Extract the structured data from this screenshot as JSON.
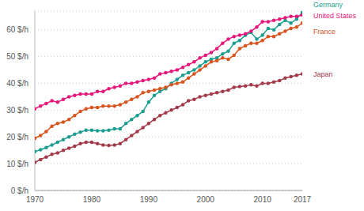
{
  "chart_data": {
    "type": "line",
    "x": [
      1970,
      1971,
      1972,
      1973,
      1974,
      1975,
      1976,
      1977,
      1978,
      1979,
      1980,
      1981,
      1982,
      1983,
      1984,
      1985,
      1986,
      1987,
      1988,
      1989,
      1990,
      1991,
      1992,
      1993,
      1994,
      1995,
      1996,
      1997,
      1998,
      1999,
      2000,
      2001,
      2002,
      2003,
      2004,
      2005,
      2006,
      2007,
      2008,
      2009,
      2010,
      2011,
      2012,
      2013,
      2014,
      2015,
      2016,
      2017
    ],
    "series": [
      {
        "name": "Germany",
        "color": "#1a9e8f",
        "marker": "circle",
        "values": [
          14.5,
          15.2,
          16,
          17,
          18,
          19,
          20,
          21,
          21.8,
          22.5,
          22.5,
          22.3,
          22.3,
          22.5,
          23,
          23,
          25,
          26.5,
          28,
          29.5,
          33,
          35.5,
          37,
          38,
          40,
          41.5,
          43,
          44,
          45,
          46.5,
          48,
          49,
          49.5,
          51,
          52,
          55,
          56,
          58,
          59,
          56.5,
          58,
          60.5,
          60,
          62,
          63.5,
          62.5,
          64,
          66.5
        ]
      },
      {
        "name": "United States",
        "color": "#e6177a",
        "marker": "circle",
        "values": [
          30.5,
          31.5,
          32.5,
          33.5,
          33,
          34,
          35,
          35.5,
          36,
          36,
          36,
          37,
          37,
          38,
          38.5,
          39,
          40,
          40,
          40.5,
          41,
          41.5,
          42,
          43.5,
          44,
          44.5,
          45,
          46,
          47,
          48,
          49.5,
          50.5,
          51.5,
          53,
          55,
          56.5,
          57.5,
          58,
          58.5,
          59.5,
          61,
          63,
          63,
          63.5,
          64,
          64.5,
          65,
          65,
          65.5
        ]
      },
      {
        "name": "France",
        "color": "#d9541e",
        "marker": "circle",
        "values": [
          19.5,
          20.5,
          22,
          24,
          25,
          25.5,
          26.5,
          28,
          29.5,
          30.5,
          31,
          31,
          31.5,
          31.5,
          31.5,
          32,
          33,
          34,
          35,
          36.5,
          37,
          37.5,
          38,
          38.5,
          39.5,
          40,
          40.5,
          42,
          43.5,
          45,
          46.5,
          48,
          48.5,
          49.5,
          49,
          50.5,
          53,
          54,
          55,
          55,
          56,
          57.5,
          57.5,
          58.5,
          59.5,
          60.5,
          61,
          62.5
        ]
      },
      {
        "name": "Japan",
        "color": "#a33a4a",
        "marker": "circle",
        "values": [
          10.5,
          11.5,
          12.5,
          13.5,
          14,
          15,
          15.8,
          16.5,
          17.5,
          18,
          18,
          17.5,
          17,
          16.8,
          17,
          17.5,
          19,
          20.5,
          22,
          23.5,
          25,
          26.5,
          28,
          29,
          30,
          31,
          32,
          33.5,
          34,
          35,
          35.5,
          36,
          36.5,
          37,
          37.5,
          38.5,
          38.8,
          39,
          39.5,
          39,
          40,
          40,
          40.5,
          41,
          42,
          42.5,
          43,
          43.5
        ]
      }
    ],
    "xlim": [
      1970,
      2017
    ],
    "xticks": [
      1970,
      1980,
      1990,
      2000,
      2010,
      2017
    ],
    "ylim": [
      0,
      67
    ],
    "yticks": [
      {
        "value": 0,
        "label": "0 $/h"
      },
      {
        "value": 10,
        "label": "10 $/h"
      },
      {
        "value": 20,
        "label": "20 $/h"
      },
      {
        "value": 30,
        "label": "30 $/h"
      },
      {
        "value": 40,
        "label": "40 $/h"
      },
      {
        "value": 50,
        "label": "50 $/h"
      },
      {
        "value": 60,
        "label": "60 $/h"
      }
    ],
    "grid": true
  }
}
